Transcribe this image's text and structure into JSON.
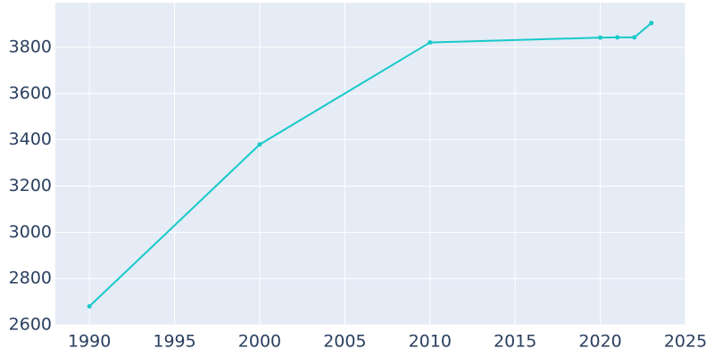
{
  "chart_data": {
    "type": "line",
    "x": [
      1990,
      2000,
      2010,
      2020,
      2021,
      2022,
      2023
    ],
    "series": [
      {
        "color": "#17c9c9",
        "values": [
          2680,
          3380,
          3821,
          3842,
          3843,
          3843,
          3905
        ]
      }
    ],
    "xlim": [
      1988,
      2025
    ],
    "xticks": [
      1990,
      1995,
      2000,
      2005,
      2010,
      2015,
      2020,
      2025
    ],
    "ylim": [
      2600,
      3993
    ],
    "yticks": [
      2600,
      2800,
      3000,
      3200,
      3400,
      3600,
      3800
    ],
    "grid": true,
    "background": "#e5ecf6"
  }
}
